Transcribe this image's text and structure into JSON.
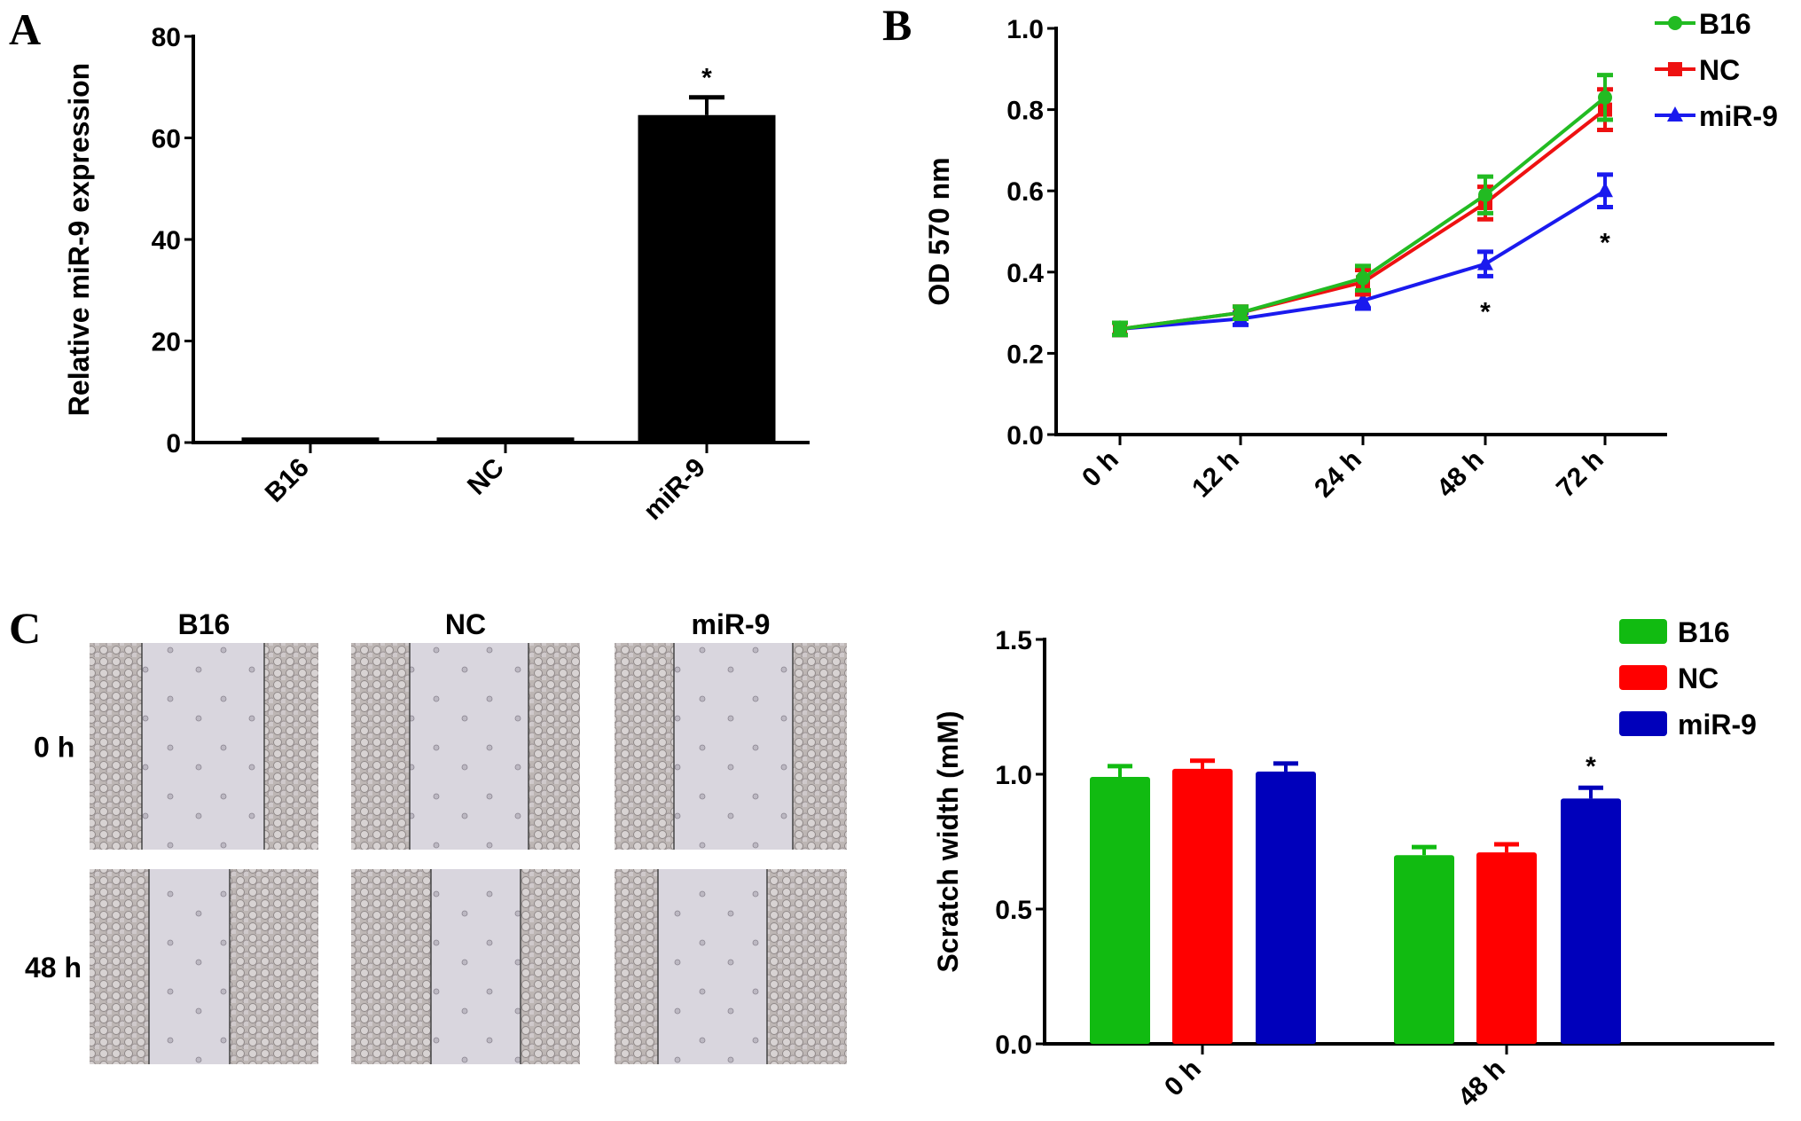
{
  "panel_labels": {
    "a": "A",
    "b": "B",
    "c": "C"
  },
  "micrographs": {
    "columns": [
      "B16",
      "NC",
      "miR-9"
    ],
    "rows": [
      "0 h",
      "48 h"
    ]
  },
  "chart_data": [
    {
      "type": "bar",
      "panel": "A",
      "categories": [
        "B16",
        "NC",
        "miR-9"
      ],
      "values": [
        1,
        1,
        64.5
      ],
      "errors": [
        0.3,
        0.3,
        3.5
      ],
      "significance": [
        "",
        "",
        "*"
      ],
      "ylabel": "Relative miR-9 expression",
      "xlabel": "",
      "ylim": [
        0,
        80
      ],
      "yticks": [
        "0",
        "20",
        "40",
        "60",
        "80"
      ],
      "color": "#000000"
    },
    {
      "type": "line",
      "panel": "B",
      "x": [
        "0 h",
        "12 h",
        "24 h",
        "48 h",
        "72 h"
      ],
      "series": [
        {
          "name": "B16",
          "color": "#22bb22",
          "marker": "circle",
          "values": [
            0.26,
            0.3,
            0.385,
            0.59,
            0.83
          ],
          "errors": [
            0.015,
            0.015,
            0.03,
            0.045,
            0.055
          ]
        },
        {
          "name": "NC",
          "color": "#ee1111",
          "marker": "square",
          "values": [
            0.26,
            0.3,
            0.375,
            0.57,
            0.8
          ],
          "errors": [
            0.015,
            0.015,
            0.03,
            0.04,
            0.05
          ]
        },
        {
          "name": "miR-9",
          "color": "#1a1aee",
          "marker": "triangle",
          "values": [
            0.26,
            0.285,
            0.33,
            0.42,
            0.6
          ],
          "errors": [
            0.015,
            0.015,
            0.02,
            0.03,
            0.04
          ]
        }
      ],
      "significance": [
        {
          "x": "48 h",
          "label": "*"
        },
        {
          "x": "72 h",
          "label": "*"
        }
      ],
      "ylabel": "OD 570 nm",
      "xlabel": "",
      "ylim": [
        0,
        1.0
      ],
      "yticks": [
        "0.0",
        "0.2",
        "0.4",
        "0.6",
        "0.8",
        "1.0"
      ],
      "legend": "top-right"
    },
    {
      "type": "bar",
      "panel": "C",
      "categories": [
        "0 h",
        "48 h"
      ],
      "series": [
        {
          "name": "B16",
          "color": "#11bb11",
          "values": [
            0.99,
            0.7
          ],
          "errors": [
            0.04,
            0.03
          ]
        },
        {
          "name": "NC",
          "color": "#ff0000",
          "values": [
            1.02,
            0.71
          ],
          "errors": [
            0.03,
            0.03
          ]
        },
        {
          "name": "miR-9",
          "color": "#0000bb",
          "values": [
            1.01,
            0.91
          ],
          "errors": [
            0.03,
            0.04
          ]
        }
      ],
      "significance": [
        {
          "category": "48 h",
          "series": "miR-9",
          "label": "*"
        }
      ],
      "ylabel": "Scratch width (mM)",
      "xlabel": "",
      "ylim": [
        0,
        1.5
      ],
      "yticks": [
        "0.0",
        "0.5",
        "1.0",
        "1.5"
      ],
      "legend": "top-right"
    }
  ]
}
